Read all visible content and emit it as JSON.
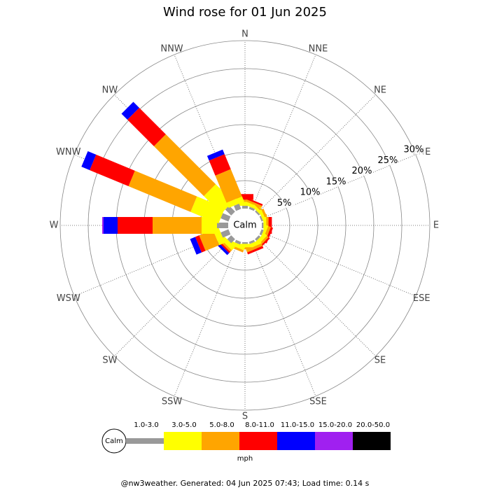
{
  "chart_data": {
    "type": "wind-rose",
    "title": "Wind rose for 01 Jun 2025",
    "center_label": "Calm",
    "directions": [
      "N",
      "NNE",
      "NE",
      "ENE",
      "E",
      "ESE",
      "SE",
      "SSE",
      "S",
      "SSW",
      "SW",
      "WSW",
      "W",
      "WNW",
      "NW",
      "NNW"
    ],
    "rlim": [
      0,
      30
    ],
    "rticks": [
      {
        "value": 5,
        "label": "5%"
      },
      {
        "value": 10,
        "label": "10%"
      },
      {
        "value": 15,
        "label": "15%"
      },
      {
        "value": 20,
        "label": "20%"
      },
      {
        "value": 25,
        "label": "25%"
      },
      {
        "value": 30,
        "label": "30%"
      }
    ],
    "grid": true,
    "series": [
      {
        "name": "1.0-3.0",
        "color": "#999999",
        "values": [
          0.5,
          0.4,
          0.3,
          0.3,
          0.3,
          0.4,
          0.4,
          0.4,
          0.3,
          0.5,
          1,
          1.5,
          2,
          1.5,
          1.5,
          1
        ]
      },
      {
        "name": "3.0-5.0",
        "color": "#ffff00",
        "values": [
          0.7,
          0.6,
          0.5,
          0.5,
          0.5,
          0.5,
          0.7,
          0.7,
          0.6,
          0.7,
          0.8,
          1.1,
          2.75,
          5.4,
          4.4,
          1
        ]
      },
      {
        "name": "5.0-8.0",
        "color": "#ffa500",
        "values": [
          0.4,
          0.4,
          0.3,
          0.4,
          0.4,
          0.5,
          0.4,
          0.5,
          0.4,
          0.4,
          0.4,
          2.65,
          8.75,
          12,
          12.6,
          5.25
        ]
      },
      {
        "name": "8.0-11.0",
        "color": "#ff0000",
        "values": [
          1,
          0.3,
          0,
          0,
          0.6,
          0.4,
          0.3,
          0.4,
          0,
          0,
          0.3,
          0.75,
          6.25,
          7.5,
          6.7,
          2.9
        ]
      },
      {
        "name": "11.0-15.0",
        "color": "#0000ff",
        "values": [
          0,
          0,
          0,
          0,
          0,
          0,
          0,
          0,
          0,
          0,
          0.5,
          1,
          2.5,
          1.6,
          1.5,
          0.9
        ]
      },
      {
        "name": "15.0-20.0",
        "color": "#a020f0",
        "values": [
          0,
          0,
          0,
          0,
          0,
          0,
          0,
          0,
          0,
          0,
          0,
          0,
          0.25,
          0,
          0,
          0
        ]
      },
      {
        "name": "20.0-50.0",
        "color": "#000000",
        "values": [
          0,
          0,
          0,
          0,
          0,
          0,
          0,
          0,
          0,
          0,
          0,
          0,
          0,
          0,
          0,
          0
        ]
      }
    ],
    "legend_unit": "mph",
    "footer": "@nw3weather. Generated: 04 Jun 2025 07:43; Load time: 0.14 s"
  }
}
